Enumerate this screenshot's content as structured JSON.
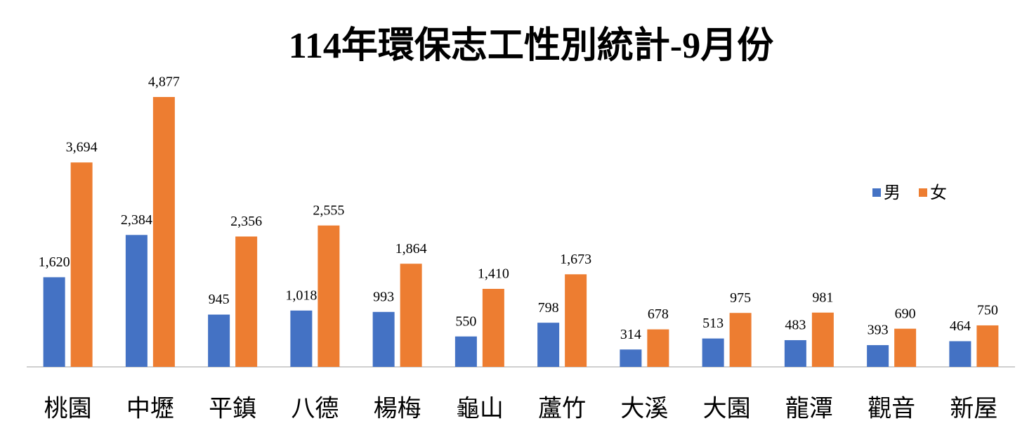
{
  "chart_data": {
    "type": "bar",
    "title": "114年環保志工性別統計-9月份",
    "categories": [
      "桃園",
      "中壢",
      "平鎮",
      "八德",
      "楊梅",
      "龜山",
      "蘆竹",
      "大溪",
      "大園",
      "龍潭",
      "觀音",
      "新屋"
    ],
    "series": [
      {
        "name": "男",
        "color": "#4472c4",
        "values": [
          1620,
          2384,
          945,
          1018,
          993,
          550,
          798,
          314,
          513,
          483,
          393,
          464
        ],
        "value_labels": [
          "1,620",
          "2,384",
          "945",
          "1,018",
          "993",
          "550",
          "798",
          "314",
          "513",
          "483",
          "393",
          "464"
        ]
      },
      {
        "name": "女",
        "color": "#ed7d31",
        "values": [
          3694,
          4877,
          2356,
          2555,
          1864,
          1410,
          1673,
          678,
          975,
          981,
          690,
          750
        ],
        "value_labels": [
          "3,694",
          "4,877",
          "2,356",
          "2,555",
          "1,864",
          "1,410",
          "1,673",
          "678",
          "975",
          "981",
          "690",
          "750"
        ]
      }
    ],
    "legend": "right"
  }
}
